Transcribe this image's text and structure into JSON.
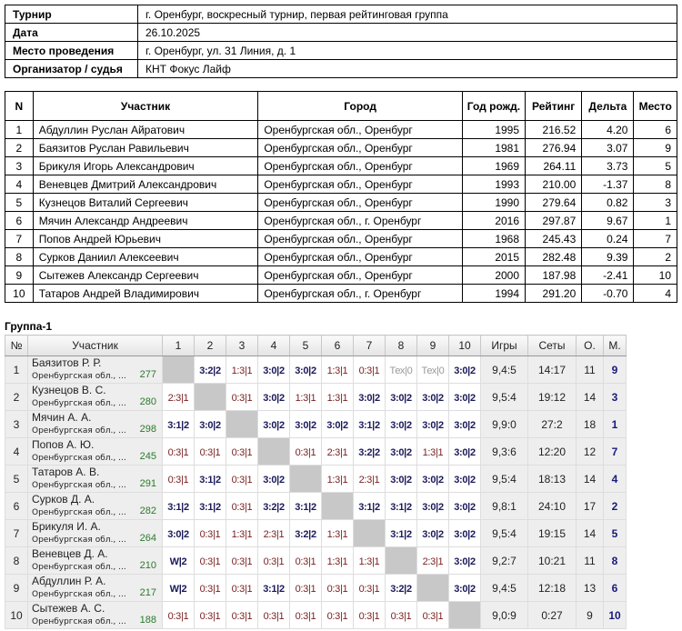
{
  "info": [
    {
      "label": "Турнир",
      "value": "г. Оренбург, воскресный турнир, первая рейтинговая группа"
    },
    {
      "label": "Дата",
      "value": "26.10.2025"
    },
    {
      "label": "Место проведения",
      "value": "г. Оренбург, ул. 31 Линия, д. 1"
    },
    {
      "label": "Организатор / судья",
      "value": "КНТ Фокус Лайф"
    }
  ],
  "players_headers": [
    "N",
    "Участник",
    "Город",
    "Год рожд.",
    "Рейтинг",
    "Дельта",
    "Место"
  ],
  "players": [
    [
      "1",
      "Абдуллин Руслан Айратович",
      "Оренбургская обл., Оренбург",
      "1995",
      "216.52",
      "4.20",
      "6"
    ],
    [
      "2",
      "Баязитов Руслан Равильевич",
      "Оренбургская обл., Оренбург",
      "1981",
      "276.94",
      "3.07",
      "9"
    ],
    [
      "3",
      "Брикуля Игорь Александрович",
      "Оренбургская обл., Оренбург",
      "1969",
      "264.11",
      "3.73",
      "5"
    ],
    [
      "4",
      "Веневцев Дмитрий Александрович",
      "Оренбургская обл., Оренбург",
      "1993",
      "210.00",
      "-1.37",
      "8"
    ],
    [
      "5",
      "Кузнецов Виталий Сергеевич",
      "Оренбургская обл., Оренбург",
      "1990",
      "279.64",
      "0.82",
      "3"
    ],
    [
      "6",
      "Мячин Александр Андреевич",
      "Оренбургская обл., г. Оренбург",
      "2016",
      "297.87",
      "9.67",
      "1"
    ],
    [
      "7",
      "Попов Андрей Юрьевич",
      "Оренбургская обл., Оренбург",
      "1968",
      "245.43",
      "0.24",
      "7"
    ],
    [
      "8",
      "Сурков Даниил Алексеевич",
      "Оренбургская обл., Оренбург",
      "2015",
      "282.48",
      "9.39",
      "2"
    ],
    [
      "9",
      "Сытежев Александр Сергеевич",
      "Оренбургская обл., Оренбург",
      "2000",
      "187.98",
      "-2.41",
      "10"
    ],
    [
      "10",
      "Татаров Андрей Владимирович",
      "Оренбургская обл., г. Оренбург",
      "1994",
      "291.20",
      "-0.70",
      "4"
    ]
  ],
  "group": {
    "title": "Группа-1",
    "headers": [
      "№",
      "Участник",
      "1",
      "2",
      "3",
      "4",
      "5",
      "6",
      "7",
      "8",
      "9",
      "10",
      "Игры",
      "Сеты",
      "О.",
      "М."
    ],
    "rows": [
      {
        "n": "1",
        "name": "Баязитов Р. Р.",
        "city": "Оренбургская обл., ...",
        "rating": "277",
        "cells": [
          "",
          "3:2|2",
          "1:3|1",
          "3:0|2",
          "3:0|2",
          "1:3|1",
          "0:3|1",
          "Тех|0",
          "Тех|0",
          "3:0|2"
        ],
        "games": "9,4:5",
        "sets": "14:17",
        "points": "11",
        "place": "9"
      },
      {
        "n": "2",
        "name": "Кузнецов В. С.",
        "city": "Оренбургская обл., ...",
        "rating": "280",
        "cells": [
          "2:3|1",
          "",
          "0:3|1",
          "3:0|2",
          "1:3|1",
          "1:3|1",
          "3:0|2",
          "3:0|2",
          "3:0|2",
          "3:0|2"
        ],
        "games": "9,5:4",
        "sets": "19:12",
        "points": "14",
        "place": "3"
      },
      {
        "n": "3",
        "name": "Мячин А. А.",
        "city": "Оренбургская обл., ...",
        "rating": "298",
        "cells": [
          "3:1|2",
          "3:0|2",
          "",
          "3:0|2",
          "3:0|2",
          "3:0|2",
          "3:1|2",
          "3:0|2",
          "3:0|2",
          "3:0|2"
        ],
        "games": "9,9:0",
        "sets": "27:2",
        "points": "18",
        "place": "1"
      },
      {
        "n": "4",
        "name": "Попов А. Ю.",
        "city": "Оренбургская обл., ...",
        "rating": "245",
        "cells": [
          "0:3|1",
          "0:3|1",
          "0:3|1",
          "",
          "0:3|1",
          "2:3|1",
          "3:2|2",
          "3:0|2",
          "1:3|1",
          "3:0|2"
        ],
        "games": "9,3:6",
        "sets": "12:20",
        "points": "12",
        "place": "7"
      },
      {
        "n": "5",
        "name": "Татаров А. В.",
        "city": "Оренбургская обл., ...",
        "rating": "291",
        "cells": [
          "0:3|1",
          "3:1|2",
          "0:3|1",
          "3:0|2",
          "",
          "1:3|1",
          "2:3|1",
          "3:0|2",
          "3:0|2",
          "3:0|2"
        ],
        "games": "9,5:4",
        "sets": "18:13",
        "points": "14",
        "place": "4"
      },
      {
        "n": "6",
        "name": "Сурков Д. А.",
        "city": "Оренбургская обл., ...",
        "rating": "282",
        "cells": [
          "3:1|2",
          "3:1|2",
          "0:3|1",
          "3:2|2",
          "3:1|2",
          "",
          "3:1|2",
          "3:1|2",
          "3:0|2",
          "3:0|2"
        ],
        "games": "9,8:1",
        "sets": "24:10",
        "points": "17",
        "place": "2"
      },
      {
        "n": "7",
        "name": "Брикуля И. А.",
        "city": "Оренбургская обл., ...",
        "rating": "264",
        "cells": [
          "3:0|2",
          "0:3|1",
          "1:3|1",
          "2:3|1",
          "3:2|2",
          "1:3|1",
          "",
          "3:1|2",
          "3:0|2",
          "3:0|2"
        ],
        "games": "9,5:4",
        "sets": "19:15",
        "points": "14",
        "place": "5"
      },
      {
        "n": "8",
        "name": "Веневцев Д. А.",
        "city": "Оренбургская обл., ...",
        "rating": "210",
        "cells": [
          "W|2",
          "0:3|1",
          "0:3|1",
          "0:3|1",
          "0:3|1",
          "1:3|1",
          "1:3|1",
          "",
          "2:3|1",
          "3:0|2"
        ],
        "games": "9,2:7",
        "sets": "10:21",
        "points": "11",
        "place": "8"
      },
      {
        "n": "9",
        "name": "Абдуллин Р. А.",
        "city": "Оренбургская обл., ...",
        "rating": "217",
        "cells": [
          "W|2",
          "0:3|1",
          "0:3|1",
          "3:1|2",
          "0:3|1",
          "0:3|1",
          "0:3|1",
          "3:2|2",
          "",
          "3:0|2"
        ],
        "games": "9,4:5",
        "sets": "12:18",
        "points": "13",
        "place": "6"
      },
      {
        "n": "10",
        "name": "Сытежев А. С.",
        "city": "Оренбургская обл., ...",
        "rating": "188",
        "cells": [
          "0:3|1",
          "0:3|1",
          "0:3|1",
          "0:3|1",
          "0:3|1",
          "0:3|1",
          "0:3|1",
          "0:3|1",
          "0:3|1",
          ""
        ],
        "games": "9,0:9",
        "sets": "0:27",
        "points": "9",
        "place": "10"
      }
    ]
  }
}
